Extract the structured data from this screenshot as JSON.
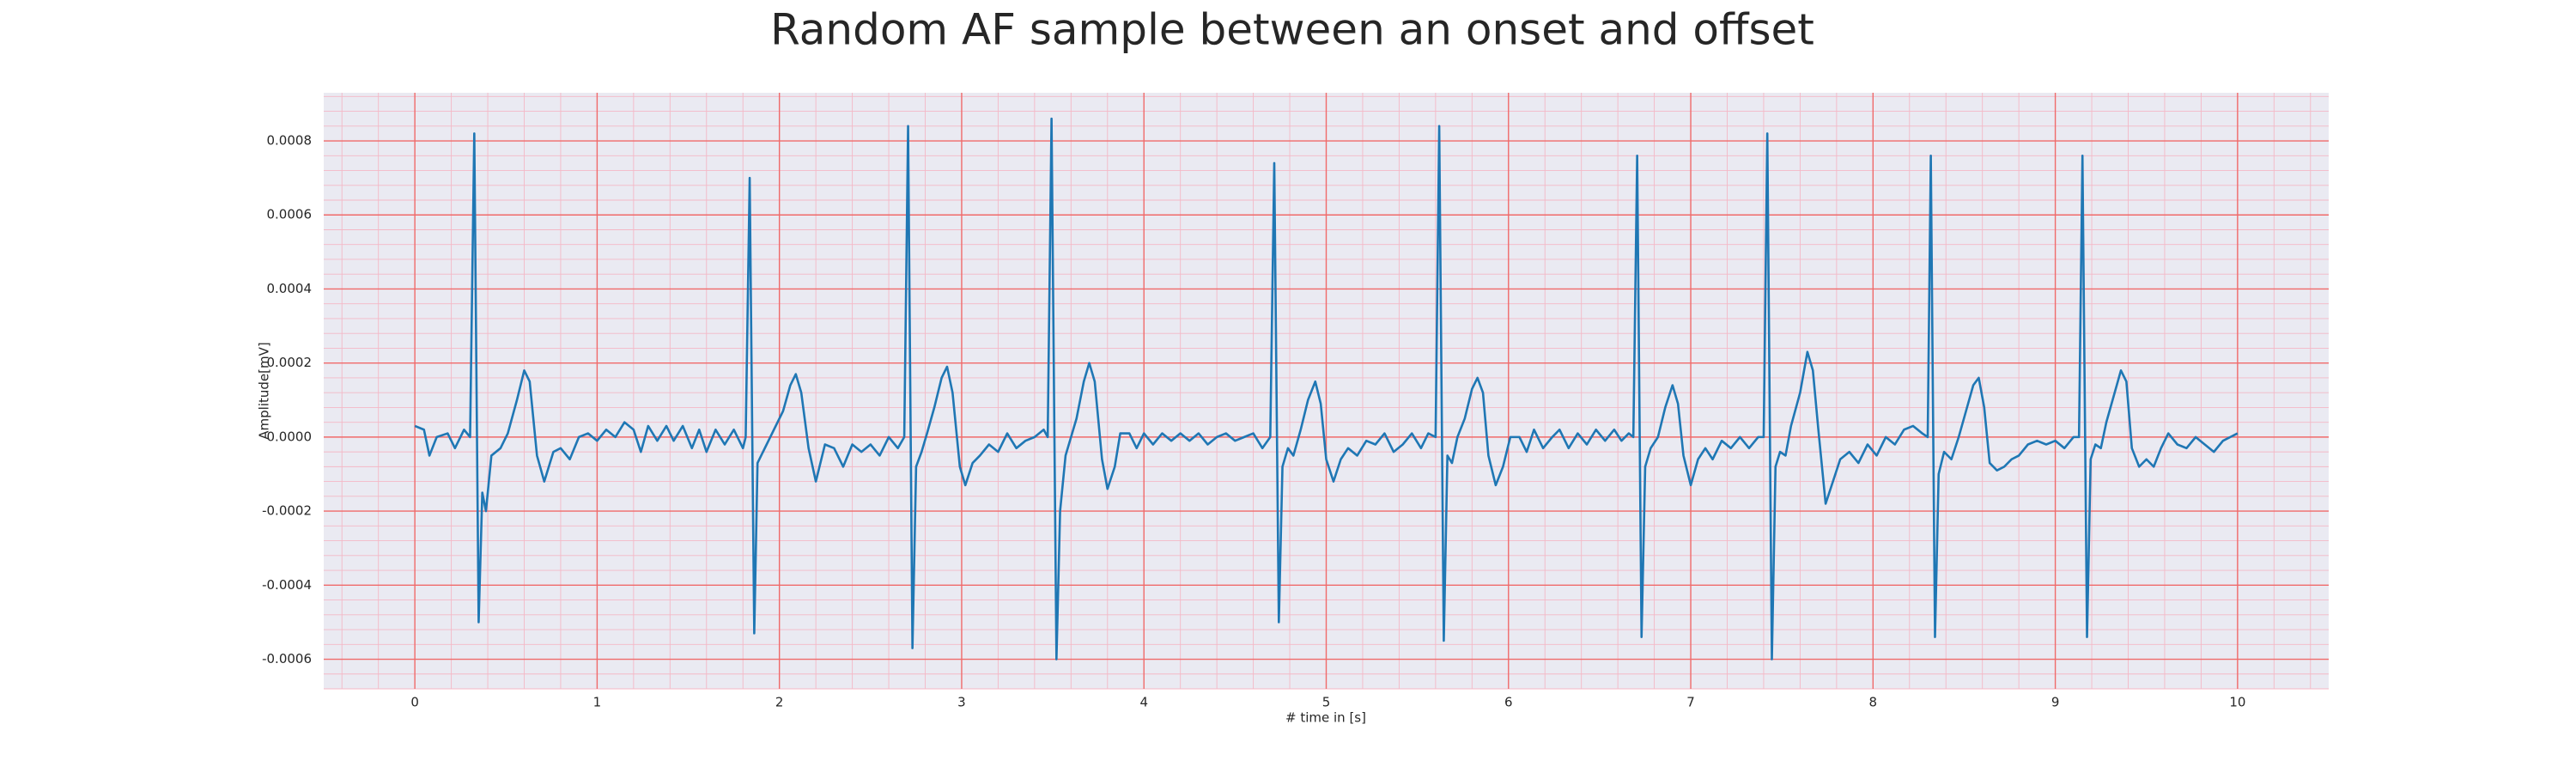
{
  "chart_data": {
    "type": "line",
    "title": "Random AF sample between an onset and offset",
    "xlabel": "# time in [s]",
    "ylabel": "Amplitude[mV]",
    "color": "#1f77b4",
    "grid": true,
    "minor_grid_divisions": 5,
    "xlim": [
      -0.5,
      10.5
    ],
    "ylim": [
      -0.00068,
      0.00093
    ],
    "xticks": [
      0,
      1,
      2,
      3,
      4,
      5,
      6,
      7,
      8,
      9,
      10
    ],
    "yticks": [
      {
        "value": -0.0006,
        "label": "-0.0006"
      },
      {
        "value": -0.0004,
        "label": "-0.0004"
      },
      {
        "value": -0.0002,
        "label": "-0.0002"
      },
      {
        "value": 0,
        "label": "0.0000"
      },
      {
        "value": 0.0002,
        "label": "0.0002"
      },
      {
        "value": 0.0004,
        "label": "0.0004"
      },
      {
        "value": 0.0006,
        "label": "0.0006"
      },
      {
        "value": 0.0008,
        "label": "0.0008"
      }
    ],
    "x": [
      0,
      0.05,
      0.08,
      0.12,
      0.18,
      0.22,
      0.27,
      0.303,
      0.326,
      0.35,
      0.37,
      0.39,
      0.42,
      0.47,
      0.51,
      0.56,
      0.6,
      0.63,
      0.67,
      0.71,
      0.76,
      0.8,
      0.85,
      0.9,
      0.95,
      1.0,
      1.05,
      1.1,
      1.15,
      1.2,
      1.24,
      1.28,
      1.33,
      1.38,
      1.42,
      1.47,
      1.52,
      1.56,
      1.6,
      1.65,
      1.7,
      1.75,
      1.8,
      1.815,
      1.837,
      1.862,
      1.88,
      1.9,
      1.93,
      1.97,
      2.02,
      2.06,
      2.09,
      2.12,
      2.16,
      2.2,
      2.25,
      2.3,
      2.35,
      2.4,
      2.45,
      2.5,
      2.55,
      2.6,
      2.65,
      2.685,
      2.706,
      2.73,
      2.75,
      2.78,
      2.81,
      2.85,
      2.89,
      2.92,
      2.95,
      2.99,
      3.02,
      3.06,
      3.1,
      3.15,
      3.2,
      3.25,
      3.3,
      3.35,
      3.4,
      3.45,
      3.472,
      3.493,
      3.52,
      3.54,
      3.57,
      3.6,
      3.63,
      3.67,
      3.7,
      3.73,
      3.77,
      3.8,
      3.84,
      3.87,
      3.92,
      3.96,
      4.0,
      4.05,
      4.1,
      4.15,
      4.2,
      4.25,
      4.3,
      4.35,
      4.4,
      4.45,
      4.5,
      4.55,
      4.6,
      4.65,
      4.693,
      4.715,
      4.74,
      4.76,
      4.79,
      4.82,
      4.86,
      4.9,
      4.94,
      4.97,
      5.0,
      5.04,
      5.08,
      5.12,
      5.17,
      5.22,
      5.27,
      5.32,
      5.37,
      5.42,
      5.47,
      5.52,
      5.56,
      5.6,
      5.62,
      5.645,
      5.665,
      5.69,
      5.72,
      5.76,
      5.8,
      5.83,
      5.86,
      5.89,
      5.93,
      5.97,
      6.01,
      6.06,
      6.1,
      6.14,
      6.19,
      6.24,
      6.28,
      6.33,
      6.38,
      6.43,
      6.48,
      6.53,
      6.58,
      6.62,
      6.66,
      6.685,
      6.706,
      6.73,
      6.75,
      6.78,
      6.82,
      6.86,
      6.9,
      6.93,
      6.96,
      7.0,
      7.04,
      7.08,
      7.12,
      7.17,
      7.22,
      7.27,
      7.32,
      7.37,
      7.4,
      7.42,
      7.445,
      7.465,
      7.49,
      7.52,
      7.55,
      7.6,
      7.64,
      7.67,
      7.7,
      7.74,
      7.78,
      7.82,
      7.87,
      7.92,
      7.97,
      8.02,
      8.07,
      8.12,
      8.17,
      8.22,
      8.27,
      8.3,
      8.317,
      8.34,
      8.36,
      8.39,
      8.43,
      8.47,
      8.51,
      8.55,
      8.58,
      8.61,
      8.64,
      8.68,
      8.72,
      8.76,
      8.8,
      8.85,
      8.9,
      8.95,
      9.0,
      9.05,
      9.1,
      9.13,
      9.149,
      9.174,
      9.194,
      9.22,
      9.25,
      9.28,
      9.32,
      9.36,
      9.39,
      9.42,
      9.46,
      9.5,
      9.54,
      9.58,
      9.62,
      9.67,
      9.72,
      9.77,
      9.82,
      9.87,
      9.92,
      9.96,
      10.0
    ],
    "values": [
      3e-05,
      2e-05,
      -5e-05,
      0.0,
      1e-05,
      -3e-05,
      2e-05,
      0.0,
      0.00082,
      -0.0005,
      -0.00015,
      -0.0002,
      -5e-05,
      -3e-05,
      1e-05,
      0.0001,
      0.00018,
      0.00015,
      -5e-05,
      -0.00012,
      -4e-05,
      -3e-05,
      -6e-05,
      0.0,
      1e-05,
      -1e-05,
      2e-05,
      0.0,
      4e-05,
      2e-05,
      -4e-05,
      3e-05,
      -1e-05,
      3e-05,
      -1e-05,
      3e-05,
      -3e-05,
      2e-05,
      -4e-05,
      2e-05,
      -2e-05,
      2e-05,
      -3e-05,
      0.0,
      0.0007,
      -0.00053,
      -7e-05,
      -5e-05,
      -2e-05,
      2e-05,
      7e-05,
      0.00014,
      0.00017,
      0.00012,
      -3e-05,
      -0.00012,
      -2e-05,
      -3e-05,
      -8e-05,
      -2e-05,
      -4e-05,
      -2e-05,
      -5e-05,
      0.0,
      -3e-05,
      0.0,
      0.00084,
      -0.00057,
      -8e-05,
      -4e-05,
      1e-05,
      8e-05,
      0.00016,
      0.00019,
      0.00012,
      -8e-05,
      -0.00013,
      -7e-05,
      -5e-05,
      -2e-05,
      -4e-05,
      1e-05,
      -3e-05,
      -1e-05,
      0.0,
      2e-05,
      0.0,
      0.00086,
      -0.0006,
      -0.0002,
      -5e-05,
      0.0,
      5e-05,
      0.00015,
      0.0002,
      0.00015,
      -6e-05,
      -0.00014,
      -8e-05,
      1e-05,
      1e-05,
      -3e-05,
      1e-05,
      -2e-05,
      1e-05,
      -1e-05,
      1e-05,
      -1e-05,
      1e-05,
      -2e-05,
      0.0,
      1e-05,
      -1e-05,
      0.0,
      1e-05,
      -3e-05,
      0.0,
      0.00074,
      -0.0005,
      -8e-05,
      -3e-05,
      -5e-05,
      2e-05,
      0.0001,
      0.00015,
      9e-05,
      -6e-05,
      -0.00012,
      -6e-05,
      -3e-05,
      -5e-05,
      -1e-05,
      -2e-05,
      1e-05,
      -4e-05,
      -2e-05,
      1e-05,
      -3e-05,
      1e-05,
      0.0,
      0.00084,
      -0.00055,
      -5e-05,
      -7e-05,
      0.0,
      5e-05,
      0.00013,
      0.00016,
      0.00012,
      -5e-05,
      -0.00013,
      -8e-05,
      0.0,
      0.0,
      -4e-05,
      2e-05,
      -3e-05,
      0.0,
      2e-05,
      -3e-05,
      1e-05,
      -2e-05,
      2e-05,
      -1e-05,
      2e-05,
      -1e-05,
      1e-05,
      0.0,
      0.00076,
      -0.00054,
      -8e-05,
      -3e-05,
      0.0,
      8e-05,
      0.00014,
      9e-05,
      -5e-05,
      -0.00013,
      -6e-05,
      -3e-05,
      -6e-05,
      -1e-05,
      -3e-05,
      0.0,
      -3e-05,
      0.0,
      0.0,
      0.00082,
      -0.0006,
      -8e-05,
      -4e-05,
      -5e-05,
      3e-05,
      0.00012,
      0.00023,
      0.00018,
      2e-05,
      -0.00018,
      -0.00012,
      -6e-05,
      -4e-05,
      -7e-05,
      -2e-05,
      -5e-05,
      0.0,
      -2e-05,
      2e-05,
      3e-05,
      1e-05,
      0.0,
      0.00076,
      -0.00054,
      -0.0001,
      -4e-05,
      -6e-05,
      0.0,
      7e-05,
      0.00014,
      0.00016,
      8e-05,
      -7e-05,
      -9e-05,
      -8e-05,
      -6e-05,
      -5e-05,
      -2e-05,
      -1e-05,
      -2e-05,
      -1e-05,
      -3e-05,
      0.0,
      0.0,
      0.00076,
      -0.00054,
      -6e-05,
      -2e-05,
      -3e-05,
      4e-05,
      0.00011,
      0.00018,
      0.00015,
      -3e-05,
      -8e-05,
      -6e-05,
      -8e-05,
      -3e-05,
      1e-05,
      -2e-05,
      -3e-05,
      0.0,
      -2e-05,
      -4e-05,
      -1e-05,
      0.0,
      1e-05
    ]
  }
}
